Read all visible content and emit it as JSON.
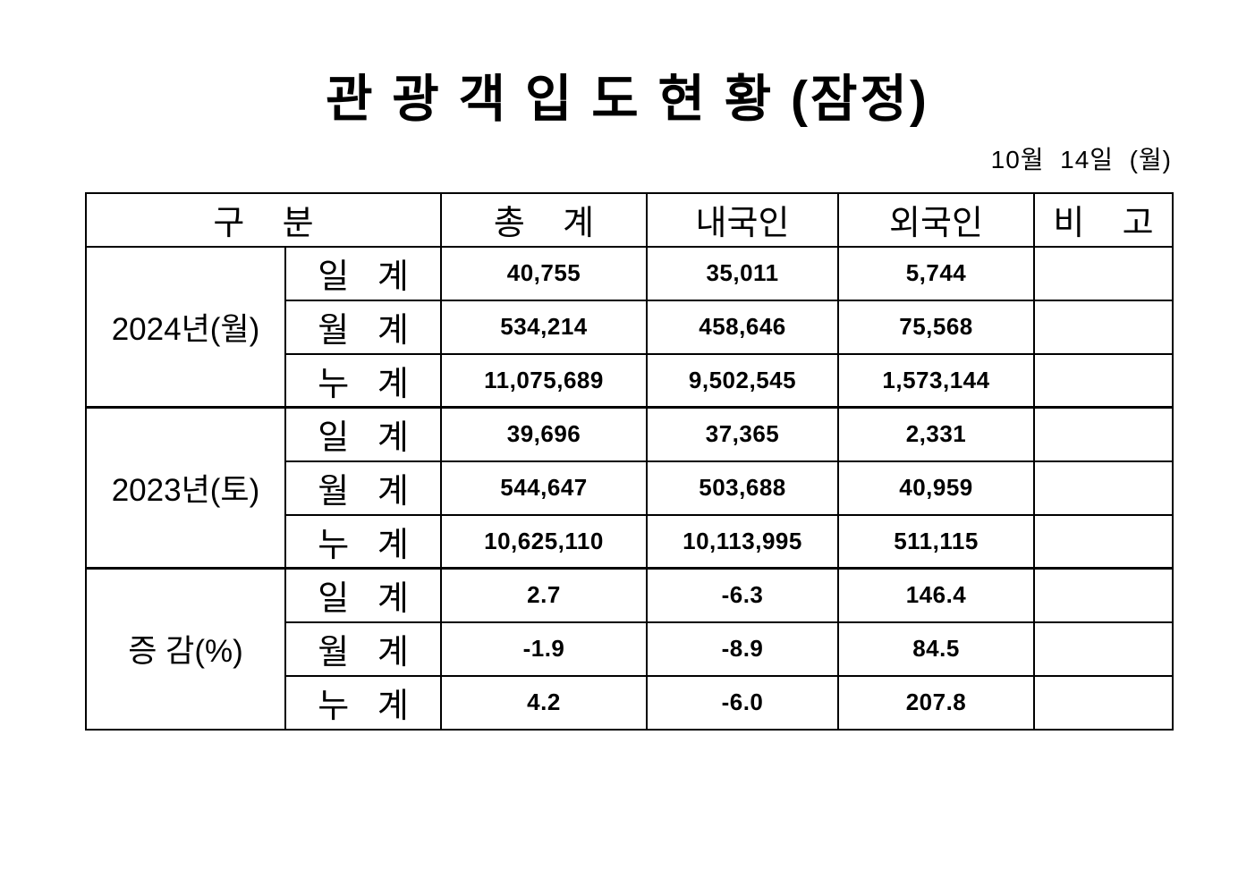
{
  "page": {
    "title": "관 광 객 입 도 현 황 (잠정)",
    "date": "10월  14일  (월)"
  },
  "colors": {
    "text": "#000000",
    "background": "#ffffff",
    "border": "#000000"
  },
  "table": {
    "headers": {
      "category": "구    분",
      "total": "총    계",
      "domestic": "내국인",
      "foreign": "외국인",
      "remarks": "비    고"
    },
    "sections": [
      {
        "group": "2024년(월)",
        "rows": [
          {
            "label": "일   계",
            "total": "40,755",
            "domestic": "35,011",
            "foreign": "5,744",
            "remarks": ""
          },
          {
            "label": "월   계",
            "total": "534,214",
            "domestic": "458,646",
            "foreign": "75,568",
            "remarks": ""
          },
          {
            "label": "누   계",
            "total": "11,075,689",
            "domestic": "9,502,545",
            "foreign": "1,573,144",
            "remarks": ""
          }
        ]
      },
      {
        "group": "2023년(토)",
        "rows": [
          {
            "label": "일   계",
            "total": "39,696",
            "domestic": "37,365",
            "foreign": "2,331",
            "remarks": ""
          },
          {
            "label": "월   계",
            "total": "544,647",
            "domestic": "503,688",
            "foreign": "40,959",
            "remarks": ""
          },
          {
            "label": "누   계",
            "total": "10,625,110",
            "domestic": "10,113,995",
            "foreign": "511,115",
            "remarks": ""
          }
        ]
      },
      {
        "group": "증 감(%)",
        "rows": [
          {
            "label": "일   계",
            "total": "2.7",
            "domestic": "-6.3",
            "foreign": "146.4",
            "remarks": ""
          },
          {
            "label": "월   계",
            "total": "-1.9",
            "domestic": "-8.9",
            "foreign": "84.5",
            "remarks": ""
          },
          {
            "label": "누   계",
            "total": "4.2",
            "domestic": "-6.0",
            "foreign": "207.8",
            "remarks": ""
          }
        ]
      }
    ]
  }
}
